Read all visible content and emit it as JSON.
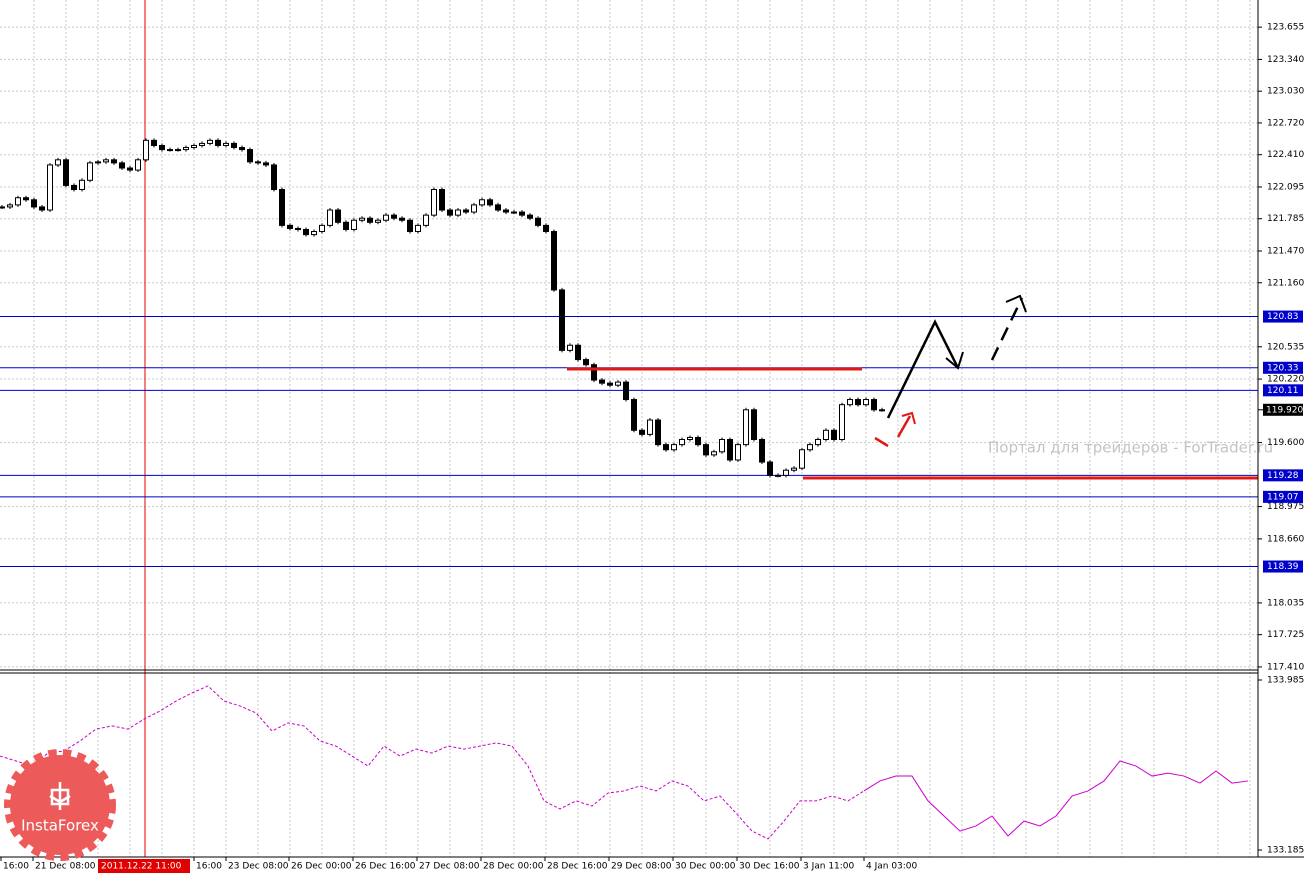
{
  "chart_data": {
    "type": "candlestick",
    "close": [
      121.9,
      121.92,
      121.99,
      121.97,
      121.9,
      121.87,
      122.31,
      122.36,
      122.11,
      122.07,
      122.16,
      122.33,
      122.34,
      122.36,
      122.33,
      122.28,
      122.26,
      122.36,
      122.55,
      122.5,
      122.46,
      122.46,
      122.46,
      122.48,
      122.5,
      122.52,
      122.55,
      122.5,
      122.52,
      122.48,
      122.46,
      122.34,
      122.33,
      122.31,
      122.07,
      121.72,
      121.69,
      121.68,
      121.63,
      121.66,
      121.72,
      121.87,
      121.75,
      121.68,
      121.77,
      121.79,
      121.75,
      121.77,
      121.82,
      121.79,
      121.77,
      121.66,
      121.72,
      121.82,
      122.07,
      121.87,
      121.82,
      121.87,
      121.85,
      121.92,
      121.97,
      121.92,
      121.87,
      121.85,
      121.85,
      121.82,
      121.79,
      121.72,
      121.66,
      121.09,
      120.5,
      120.55,
      120.41,
      120.36,
      120.21,
      120.18,
      120.16,
      120.19,
      120.02,
      119.72,
      119.68,
      119.82,
      119.58,
      119.53,
      119.58,
      119.63,
      119.65,
      119.58,
      119.48,
      119.51,
      119.63,
      119.43,
      119.58,
      119.92,
      119.63,
      119.41,
      119.28,
      119.28,
      119.33,
      119.35,
      119.53,
      119.58,
      119.63,
      119.72,
      119.63,
      119.97,
      120.02,
      119.97,
      120.02,
      119.92,
      119.92
    ],
    "ylim": [
      117.38,
      123.92
    ],
    "yticks": [
      123.655,
      {
        "value": 123.34,
        "label": "123.340"
      },
      {
        "value": 123.03,
        "label": "123.030"
      },
      {
        "value": 122.72,
        "label": "122.720"
      },
      {
        "value": 122.41,
        "label": "122.410"
      },
      122.095,
      121.785,
      {
        "value": 121.47,
        "label": "121.470"
      },
      {
        "value": 121.16,
        "label": "121.160"
      },
      120.535,
      {
        "value": 120.22,
        "label": "120.220"
      },
      {
        "value": 119.6,
        "label": "119.600"
      },
      118.975,
      {
        "value": 118.66,
        "label": "118.660"
      },
      118.035,
      117.725,
      {
        "value": 117.41,
        "label": "117.410"
      }
    ],
    "grid": true,
    "levels": [
      120.83,
      120.33,
      120.11,
      119.28,
      119.07,
      118.39
    ],
    "level_color": "#0000cc",
    "current": {
      "value": 119.92,
      "label": "119.920"
    },
    "x_labels": [
      "16:00",
      "21 Dec 08:00",
      null,
      "16:00",
      "23 Dec 08:00",
      "26 Dec 00:00",
      "26 Dec 16:00",
      "27 Dec 08:00",
      "28 Dec 00:00",
      "28 Dec 16:00",
      "29 Dec 08:00",
      "30 Dec 00:00",
      "30 Dec 16:00",
      "3 Jan 11:00",
      "4 Jan 03:00"
    ],
    "cursor_label": "2011.12.22 11:00",
    "watermark": "Портал для трейдеров - ForTrader.ru",
    "logo": "InstaForex",
    "indicator": {
      "type": "line",
      "color": "#cc00cc",
      "ylim": [
        133.152,
        134.018
      ],
      "yticks": [
        133.985,
        133.185
      ],
      "series": [
        {
          "dash": true,
          "values": [
            133.627,
            133.604,
            133.58,
            133.641,
            133.651,
            133.698,
            133.754,
            133.769,
            133.754,
            133.801,
            133.839,
            133.886,
            133.924,
            133.957,
            133.886,
            133.863,
            133.83,
            133.745,
            133.783,
            133.769,
            133.698,
            133.674,
            133.627,
            133.58,
            133.674,
            133.627,
            133.66,
            133.641,
            133.674,
            133.66,
            133.674,
            133.689,
            133.674,
            133.58,
            133.416,
            133.378,
            133.416,
            133.392,
            133.453,
            133.463,
            133.486,
            133.463,
            133.51,
            133.486,
            133.416,
            133.439,
            133.359,
            133.274,
            133.237,
            133.321,
            133.416,
            133.416,
            133.439,
            133.416,
            133.463,
            null,
            null,
            null,
            null,
            null,
            null,
            null,
            null,
            null,
            null,
            null,
            null,
            null,
            null,
            null,
            null,
            null,
            null,
            null,
            null,
            null,
            null,
            null,
            null
          ]
        },
        {
          "dash": false,
          "values": [
            null,
            null,
            null,
            null,
            null,
            null,
            null,
            null,
            null,
            null,
            null,
            null,
            null,
            null,
            null,
            null,
            null,
            null,
            null,
            null,
            null,
            null,
            null,
            null,
            null,
            null,
            null,
            null,
            null,
            null,
            null,
            null,
            null,
            null,
            null,
            null,
            null,
            null,
            null,
            null,
            null,
            null,
            null,
            null,
            null,
            null,
            null,
            null,
            null,
            null,
            null,
            null,
            null,
            null,
            133.463,
            133.51,
            133.533,
            133.533,
            133.416,
            133.345,
            133.274,
            133.298,
            133.345,
            133.251,
            133.321,
            133.298,
            133.345,
            133.439,
            133.463,
            133.51,
            133.604,
            133.58,
            133.533,
            133.547,
            133.533,
            133.5,
            133.557,
            133.5,
            133.51
          ]
        }
      ]
    }
  }
}
